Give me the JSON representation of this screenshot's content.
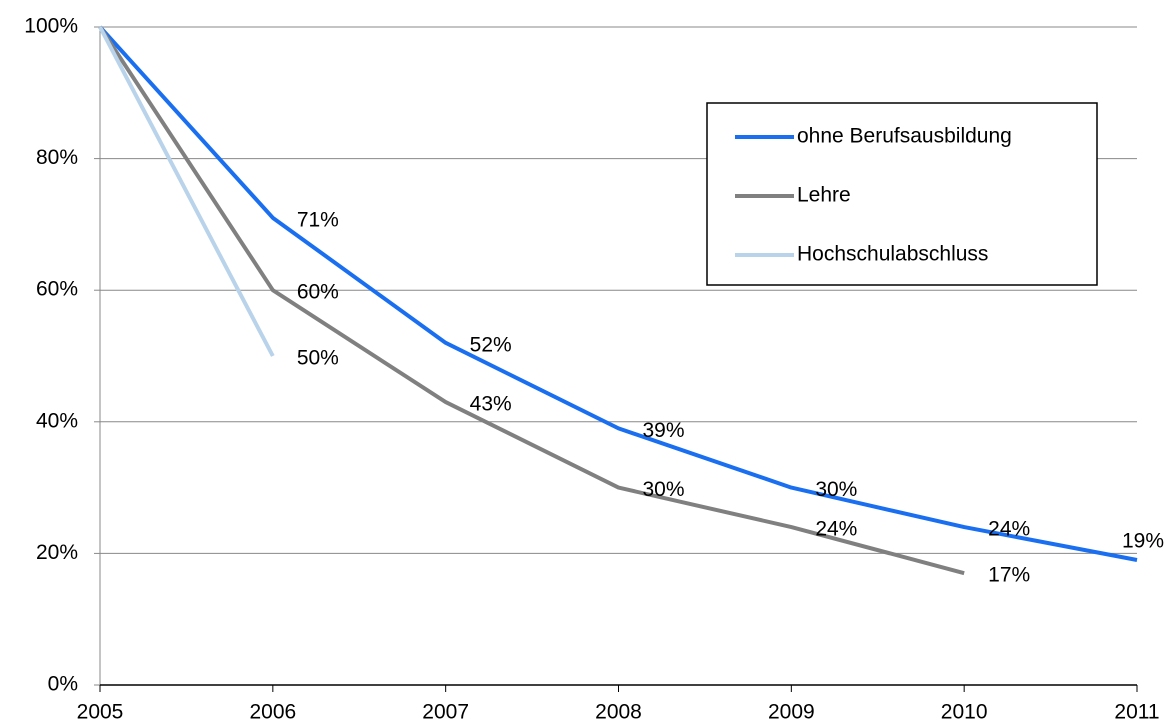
{
  "chart_data": {
    "type": "line",
    "x": [
      2005,
      2006,
      2007,
      2008,
      2009,
      2010,
      2011
    ],
    "xlim": [
      2005,
      2011
    ],
    "xticks": [
      2005,
      2006,
      2007,
      2008,
      2009,
      2010,
      2011
    ],
    "ylim": [
      0,
      100
    ],
    "yticks": [
      {
        "value": 0,
        "label": "0%"
      },
      {
        "value": 20,
        "label": "20%"
      },
      {
        "value": 40,
        "label": "40%"
      },
      {
        "value": 60,
        "label": "60%"
      },
      {
        "value": 80,
        "label": "80%"
      },
      {
        "value": 100,
        "label": "100%"
      }
    ],
    "grid": true,
    "legend": "upper right",
    "series": [
      {
        "name": "ohne Berufsausbildung",
        "color": "#1a6ff0",
        "values": [
          100,
          71,
          52,
          39,
          30,
          24,
          19
        ],
        "value_labels": [
          null,
          "71%",
          "52%",
          "39%",
          "30%",
          "24%",
          "19%"
        ]
      },
      {
        "name": "Lehre",
        "color": "#808080",
        "values": [
          100,
          60,
          43,
          30,
          24,
          17,
          null
        ],
        "value_labels": [
          null,
          "60%",
          "43%",
          "30%",
          "24%",
          "17%",
          null
        ]
      },
      {
        "name": "Hochschulabschluss",
        "color": "#b9d3ea",
        "values": [
          100,
          50,
          null,
          null,
          null,
          null,
          null
        ],
        "value_labels": [
          null,
          "50%",
          null,
          null,
          null,
          null,
          null
        ]
      }
    ]
  }
}
